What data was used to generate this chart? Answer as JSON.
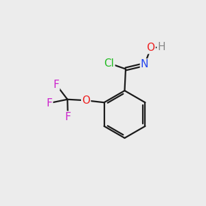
{
  "background_color": "#ececec",
  "bond_color": "#1a1a1a",
  "bond_width": 1.6,
  "atom_colors": {
    "Cl": "#22bb22",
    "O": "#ee2222",
    "N": "#2244ee",
    "F": "#cc22cc",
    "H": "#888888",
    "C": "#1a1a1a"
  },
  "font_size": 11,
  "fig_width": 3.0,
  "fig_height": 3.0,
  "dpi": 100
}
